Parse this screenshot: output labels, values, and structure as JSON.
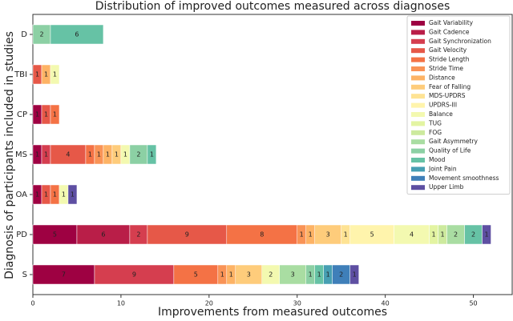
{
  "chart_data": {
    "type": "stacked_barh",
    "title": "Distribution of improved outcomes measured across diagnoses",
    "x_label": "Improvements from measured outcomes",
    "y_label": "Diagnosis of participants included in studies",
    "categories": [
      "D",
      "TBI",
      "CP",
      "MS",
      "OA",
      "PD",
      "S"
    ],
    "xlim": [
      0,
      54.5
    ],
    "xticks": [
      0,
      10,
      20,
      30,
      40,
      50
    ],
    "legend_position": "upper right",
    "series": [
      {
        "name": "Gait Variability",
        "color": "#9e0142",
        "values": [
          null,
          null,
          1,
          1,
          1,
          5,
          7
        ]
      },
      {
        "name": "Gait Cadence",
        "color": "#b91e48",
        "values": [
          null,
          null,
          null,
          null,
          null,
          6,
          null
        ]
      },
      {
        "name": "Gait Synchronization",
        "color": "#d53e4f",
        "values": [
          null,
          null,
          null,
          1,
          null,
          2,
          9
        ]
      },
      {
        "name": "Gait Velocity",
        "color": "#e65848",
        "values": [
          null,
          1,
          1,
          4,
          1,
          9,
          null
        ]
      },
      {
        "name": "Stride Length",
        "color": "#f47245",
        "values": [
          null,
          null,
          1,
          1,
          1,
          8,
          5
        ]
      },
      {
        "name": "Stride Time",
        "color": "#f99356",
        "values": [
          null,
          null,
          null,
          1,
          null,
          1,
          1
        ]
      },
      {
        "name": "Distance",
        "color": "#fdb365",
        "values": [
          null,
          1,
          null,
          1,
          null,
          1,
          1
        ]
      },
      {
        "name": "Fear of Falling",
        "color": "#fecc7b",
        "values": [
          null,
          null,
          null,
          1,
          null,
          3,
          3
        ]
      },
      {
        "name": "MDS-UPDRS",
        "color": "#fee394",
        "values": [
          null,
          null,
          null,
          null,
          null,
          1,
          null
        ]
      },
      {
        "name": "UPDRS-III",
        "color": "#fff4ac",
        "values": [
          null,
          null,
          null,
          null,
          null,
          5,
          null
        ]
      },
      {
        "name": "Balance",
        "color": "#f3f9b0",
        "values": [
          null,
          1,
          null,
          1,
          1,
          4,
          2
        ]
      },
      {
        "name": "TUG",
        "color": "#e3f4a2",
        "values": [
          null,
          null,
          null,
          null,
          null,
          1,
          null
        ]
      },
      {
        "name": "FOG",
        "color": "#cdea9e",
        "values": [
          null,
          null,
          null,
          null,
          null,
          1,
          null
        ]
      },
      {
        "name": "Gait Asymmetry",
        "color": "#a9dda2",
        "values": [
          null,
          null,
          null,
          null,
          null,
          2,
          3
        ]
      },
      {
        "name": "Quality of Life",
        "color": "#8cd0a4",
        "values": [
          2,
          null,
          null,
          2,
          null,
          null,
          1
        ]
      },
      {
        "name": "Mood",
        "color": "#66c2a5",
        "values": [
          6,
          null,
          null,
          1,
          null,
          2,
          1
        ]
      },
      {
        "name": "Joint Pain",
        "color": "#479fb3",
        "values": [
          null,
          null,
          null,
          null,
          null,
          null,
          1
        ]
      },
      {
        "name": "Movement smoothness",
        "color": "#3f7fb9",
        "values": [
          null,
          null,
          null,
          null,
          null,
          null,
          2
        ]
      },
      {
        "name": "Upper Limb",
        "color": "#5e4fa2",
        "values": [
          null,
          null,
          null,
          null,
          1,
          1,
          1
        ]
      }
    ]
  }
}
